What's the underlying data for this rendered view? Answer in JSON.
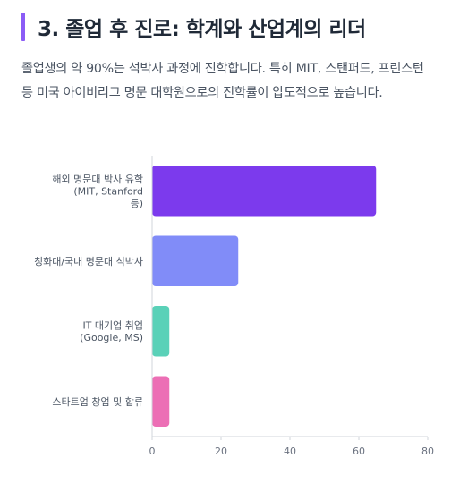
{
  "section": {
    "title": "3. 졸업 후 진로: 학계와 산업계의 리더",
    "description": "졸업생의 약 90%는 석박사 과정에 진학합니다. 특히 MIT, 스탠퍼드, 프린스턴 등 미국 아이비리그 명문 대학원으로의 진학률이 압도적으로 높습니다."
  },
  "colors": {
    "accent": "#8b5cf6"
  },
  "chart_data": {
    "type": "bar",
    "orientation": "horizontal",
    "categories": [
      [
        "해외 명문대 박사 유학",
        "(MIT, Stanford",
        "등)"
      ],
      [
        "칭화대/국내 명문대 석박사"
      ],
      [
        "IT 대기업 취업",
        "(Google, MS)"
      ],
      [
        "스타트업 창업 및 합류"
      ]
    ],
    "values": [
      65,
      25,
      5,
      5
    ],
    "bar_colors": [
      "#7c3aed",
      "#818cf8",
      "#5ad1b8",
      "#ec6fb5"
    ],
    "xlim": [
      0,
      80
    ],
    "xticks": [
      0,
      20,
      40,
      60,
      80
    ],
    "grid": false,
    "legend": "none"
  }
}
